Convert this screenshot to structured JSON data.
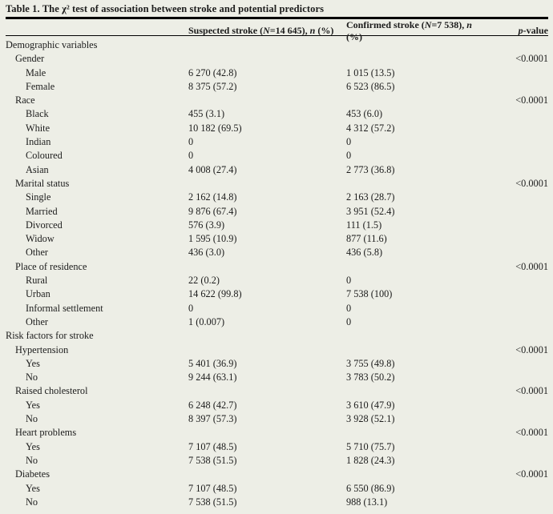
{
  "title": "Table 1. The χ² test of association between stroke and potential predictors",
  "colors": {
    "background": "#edeee6",
    "rule": "#000000",
    "text": "#1c1c1c"
  },
  "table": {
    "headers": {
      "suspected": {
        "pre": "Suspected stroke (",
        "n_sym": "N",
        "mid": "=14 645), ",
        "count_sym": "n",
        "post": " (%)"
      },
      "confirmed": {
        "pre": "Confirmed stroke (",
        "n_sym": "N",
        "mid": "=7 538), ",
        "count_sym": "n",
        "post": " (%)"
      },
      "p_value": {
        "p_sym": "p",
        "rest": "-value"
      }
    },
    "rows": [
      {
        "label": "Demographic variables",
        "indent": 0,
        "suspected": "",
        "confirmed": "",
        "p": ""
      },
      {
        "label": "Gender",
        "indent": 1,
        "suspected": "",
        "confirmed": "",
        "p": "<0.0001"
      },
      {
        "label": "Male",
        "indent": 2,
        "suspected": "6 270 (42.8)",
        "confirmed": "1 015 (13.5)",
        "p": ""
      },
      {
        "label": "Female",
        "indent": 2,
        "suspected": "8 375 (57.2)",
        "confirmed": "6 523 (86.5)",
        "p": ""
      },
      {
        "label": "Race",
        "indent": 1,
        "suspected": "",
        "confirmed": "",
        "p": "<0.0001"
      },
      {
        "label": "Black",
        "indent": 2,
        "suspected": "455 (3.1)",
        "confirmed": "453 (6.0)",
        "p": ""
      },
      {
        "label": "White",
        "indent": 2,
        "suspected": "10 182 (69.5)",
        "confirmed": "4 312 (57.2)",
        "p": ""
      },
      {
        "label": "Indian",
        "indent": 2,
        "suspected": "0",
        "confirmed": "0",
        "p": ""
      },
      {
        "label": "Coloured",
        "indent": 2,
        "suspected": "0",
        "confirmed": "0",
        "p": ""
      },
      {
        "label": "Asian",
        "indent": 2,
        "suspected": "4 008 (27.4)",
        "confirmed": "2 773 (36.8)",
        "p": ""
      },
      {
        "label": "Marital status",
        "indent": 1,
        "suspected": "",
        "confirmed": "",
        "p": "<0.0001"
      },
      {
        "label": "Single",
        "indent": 2,
        "suspected": "2 162 (14.8)",
        "confirmed": "2 163 (28.7)",
        "p": ""
      },
      {
        "label": "Married",
        "indent": 2,
        "suspected": "9 876 (67.4)",
        "confirmed": "3 951 (52.4)",
        "p": ""
      },
      {
        "label": "Divorced",
        "indent": 2,
        "suspected": "576 (3.9)",
        "confirmed": "111 (1.5)",
        "p": ""
      },
      {
        "label": "Widow",
        "indent": 2,
        "suspected": "1 595 (10.9)",
        "confirmed": "877 (11.6)",
        "p": ""
      },
      {
        "label": "Other",
        "indent": 2,
        "suspected": "436 (3.0)",
        "confirmed": "436 (5.8)",
        "p": ""
      },
      {
        "label": "Place of residence",
        "indent": 1,
        "suspected": "",
        "confirmed": "",
        "p": "<0.0001"
      },
      {
        "label": "Rural",
        "indent": 2,
        "suspected": "22 (0.2)",
        "confirmed": "0",
        "p": ""
      },
      {
        "label": "Urban",
        "indent": 2,
        "suspected": "14 622 (99.8)",
        "confirmed": "7 538 (100)",
        "p": ""
      },
      {
        "label": "Informal settlement",
        "indent": 2,
        "suspected": "0",
        "confirmed": "0",
        "p": ""
      },
      {
        "label": "Other",
        "indent": 2,
        "suspected": "1 (0.007)",
        "confirmed": "0",
        "p": ""
      },
      {
        "label": "Risk factors for stroke",
        "indent": 0,
        "suspected": "",
        "confirmed": "",
        "p": ""
      },
      {
        "label": "Hypertension",
        "indent": 1,
        "suspected": "",
        "confirmed": "",
        "p": "<0.0001"
      },
      {
        "label": "Yes",
        "indent": 2,
        "suspected": "5 401 (36.9)",
        "confirmed": "3 755 (49.8)",
        "p": ""
      },
      {
        "label": "No",
        "indent": 2,
        "suspected": "9 244 (63.1)",
        "confirmed": "3 783 (50.2)",
        "p": ""
      },
      {
        "label": "Raised cholesterol",
        "indent": 1,
        "suspected": "",
        "confirmed": "",
        "p": "<0.0001"
      },
      {
        "label": "Yes",
        "indent": 2,
        "suspected": "6 248 (42.7)",
        "confirmed": "3 610 (47.9)",
        "p": ""
      },
      {
        "label": "No",
        "indent": 2,
        "suspected": "8 397 (57.3)",
        "confirmed": "3 928 (52.1)",
        "p": ""
      },
      {
        "label": "Heart problems",
        "indent": 1,
        "suspected": "",
        "confirmed": "",
        "p": "<0.0001"
      },
      {
        "label": "Yes",
        "indent": 2,
        "suspected": "7 107 (48.5)",
        "confirmed": "5 710 (75.7)",
        "p": ""
      },
      {
        "label": "No",
        "indent": 2,
        "suspected": "7 538 (51.5)",
        "confirmed": "1 828 (24.3)",
        "p": ""
      },
      {
        "label": "Diabetes",
        "indent": 1,
        "suspected": "",
        "confirmed": "",
        "p": "<0.0001"
      },
      {
        "label": "Yes",
        "indent": 2,
        "suspected": "7 107 (48.5)",
        "confirmed": "6 550 (86.9)",
        "p": ""
      },
      {
        "label": "No",
        "indent": 2,
        "suspected": "7 538 (51.5)",
        "confirmed": "988 (13.1)",
        "p": ""
      }
    ]
  }
}
